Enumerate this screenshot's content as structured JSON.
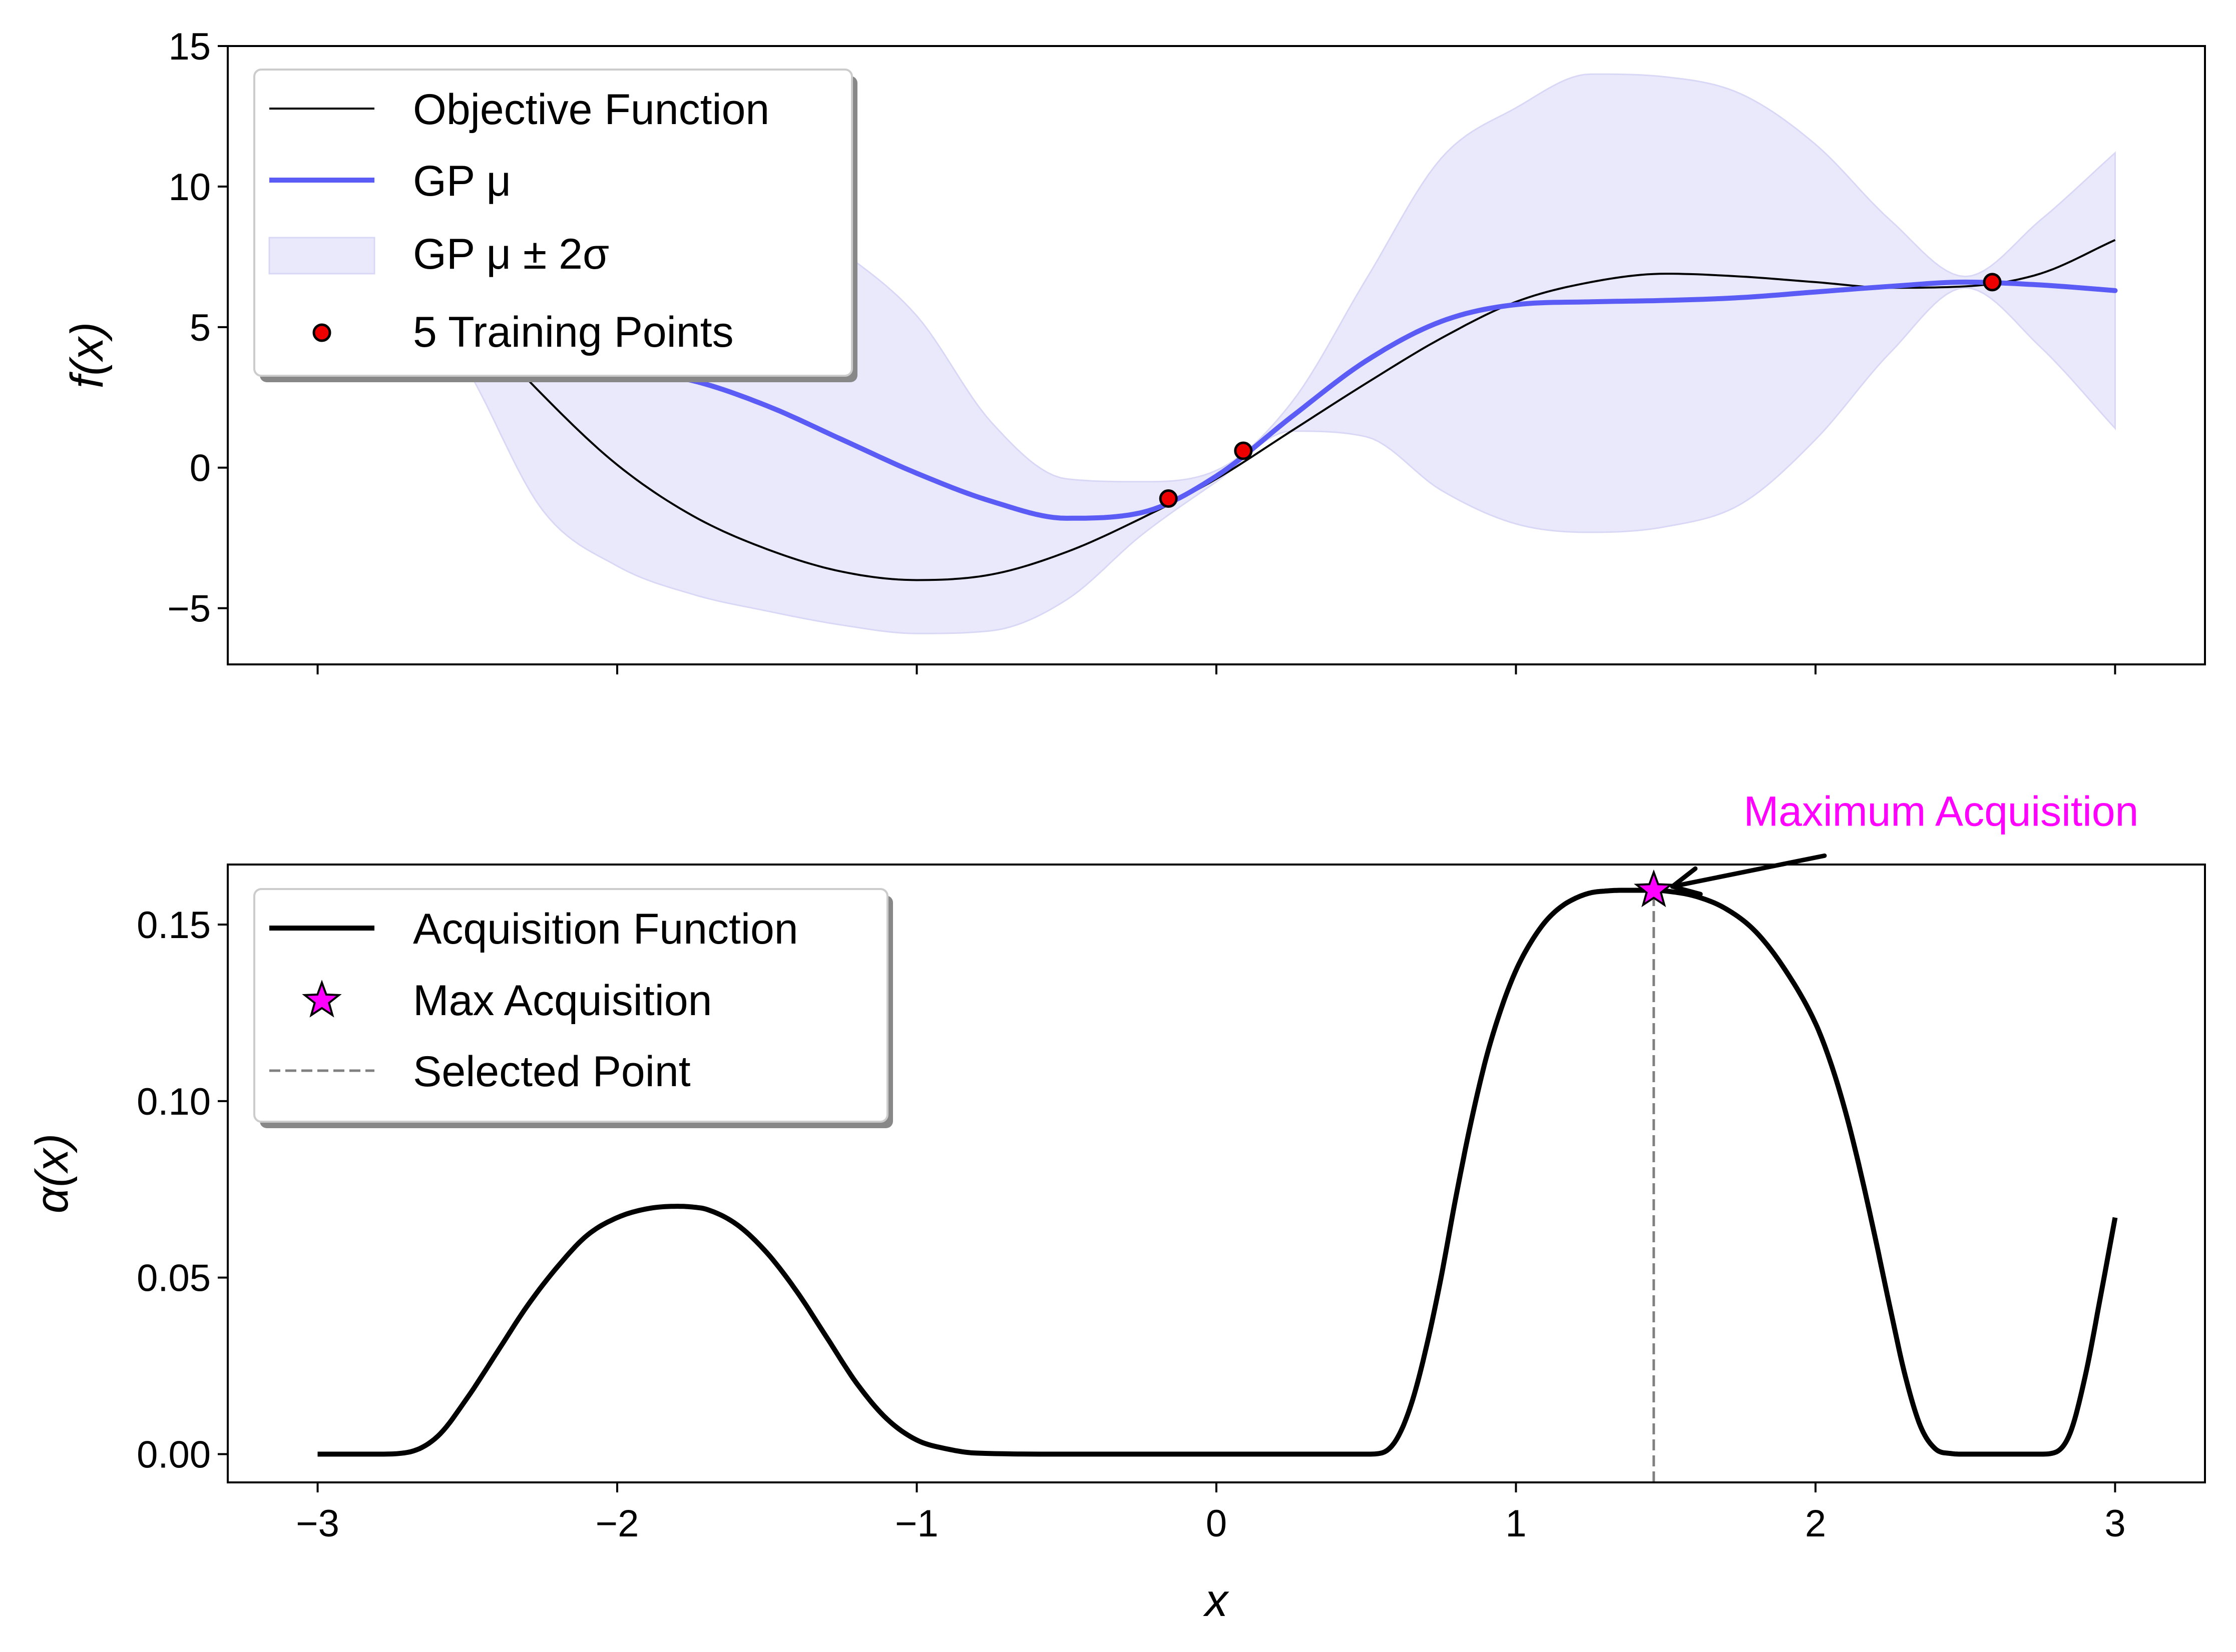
{
  "chart_data": [
    {
      "type": "line",
      "ylabel": "f(x)",
      "xlim": [
        -3.3,
        3.3
      ],
      "ylim": [
        -7,
        15
      ],
      "xticks": [
        -3,
        -2,
        -1,
        0,
        1,
        2,
        3
      ],
      "yticks": [
        -5,
        0,
        5,
        10,
        15
      ],
      "ytick_labels": [
        "−5",
        "0",
        "5",
        "10",
        "15"
      ],
      "grid": false,
      "legend_position": "upper-left",
      "legend": {
        "objective": "Objective Function",
        "gp_mean": "GP μ",
        "gp_band": "GP μ ± 2σ",
        "training": "5 Training Points"
      },
      "series": [
        {
          "name": "Objective Function",
          "color": "#000000",
          "x": [
            -3.0,
            -2.75,
            -2.5,
            -2.25,
            -2.0,
            -1.75,
            -1.5,
            -1.25,
            -1.0,
            -0.75,
            -0.5,
            -0.25,
            0.0,
            0.25,
            0.5,
            0.75,
            1.0,
            1.25,
            1.5,
            1.75,
            2.0,
            2.25,
            2.5,
            2.75,
            3.0
          ],
          "y": [
            11.5,
            9.0,
            5.5,
            2.6,
            0.1,
            -1.7,
            -2.9,
            -3.7,
            -4.0,
            -3.8,
            -3.0,
            -1.8,
            -0.4,
            1.3,
            3.0,
            4.6,
            5.9,
            6.6,
            6.9,
            6.8,
            6.6,
            6.4,
            6.45,
            6.9,
            8.1
          ]
        },
        {
          "name": "GP μ",
          "color": "#5b5bf5",
          "x": [
            -3.0,
            -2.75,
            -2.5,
            -2.25,
            -2.0,
            -1.75,
            -1.5,
            -1.25,
            -1.0,
            -0.75,
            -0.5,
            -0.25,
            0.0,
            0.25,
            0.5,
            0.75,
            1.0,
            1.25,
            1.5,
            1.75,
            2.0,
            2.25,
            2.5,
            2.75,
            3.0
          ],
          "y": [
            11.5,
            8.5,
            5.5,
            4.0,
            3.5,
            3.1,
            2.2,
            1.0,
            -0.2,
            -1.2,
            -1.8,
            -1.6,
            -0.3,
            1.8,
            3.8,
            5.2,
            5.8,
            5.9,
            5.95,
            6.05,
            6.25,
            6.45,
            6.6,
            6.5,
            6.3
          ]
        }
      ],
      "band": {
        "name": "GP μ ± 2σ",
        "color": "#e9e9fb",
        "edge_color": "#d8d8f6",
        "x": [
          -3.0,
          -2.75,
          -2.5,
          -2.25,
          -2.0,
          -1.75,
          -1.5,
          -1.25,
          -1.0,
          -0.75,
          -0.5,
          -0.25,
          0.0,
          0.25,
          0.5,
          0.75,
          1.0,
          1.25,
          1.5,
          1.75,
          2.0,
          2.25,
          2.5,
          2.75,
          3.0
        ],
        "lower": [
          11.5,
          7.4,
          3.5,
          -1.5,
          -3.5,
          -4.5,
          -5.1,
          -5.6,
          -5.9,
          -5.8,
          -4.7,
          -2.4,
          -0.5,
          1.3,
          1.1,
          -0.8,
          -2.0,
          -2.3,
          -2.1,
          -1.3,
          1.0,
          4.1,
          6.4,
          4.3,
          1.4
        ],
        "upper": [
          11.5,
          9.6,
          8.5,
          9.7,
          10.6,
          10.8,
          9.6,
          7.7,
          5.4,
          1.6,
          -0.4,
          -0.5,
          -0.1,
          2.3,
          6.7,
          11.0,
          12.8,
          14.0,
          13.9,
          13.3,
          11.5,
          8.8,
          6.8,
          8.8,
          11.2
        ]
      },
      "training_points": {
        "name": "5 Training Points",
        "color": "#ee0000",
        "x": [
          -3.0,
          -2.5,
          -0.16,
          0.09,
          2.59
        ],
        "y": [
          11.5,
          5.5,
          -1.1,
          0.6,
          6.6
        ]
      }
    },
    {
      "type": "line",
      "xlabel": "x",
      "ylabel": "α(x)",
      "xlim": [
        -3.3,
        3.3
      ],
      "ylim": [
        -0.008,
        0.167
      ],
      "xticks": [
        -3,
        -2,
        -1,
        0,
        1,
        2,
        3
      ],
      "xtick_labels": [
        "−3",
        "−2",
        "−1",
        "0",
        "1",
        "2",
        "3"
      ],
      "yticks": [
        0.0,
        0.05,
        0.1,
        0.15
      ],
      "ytick_labels": [
        "0.00",
        "0.05",
        "0.10",
        "0.15"
      ],
      "grid": false,
      "legend_position": "upper-left",
      "legend": {
        "acq": "Acquisition Function",
        "max": "Max Acquisition",
        "selected": "Selected Point"
      },
      "series": [
        {
          "name": "Acquisition Function",
          "color": "#000000",
          "x": [
            -3.0,
            -2.8,
            -2.7,
            -2.6,
            -2.5,
            -2.4,
            -2.3,
            -2.2,
            -2.1,
            -2.0,
            -1.9,
            -1.8,
            -1.75,
            -1.7,
            -1.6,
            -1.5,
            -1.4,
            -1.3,
            -1.2,
            -1.1,
            -1.0,
            -0.9,
            -0.8,
            -0.5,
            0.0,
            0.5,
            0.55,
            0.6,
            0.65,
            0.7,
            0.75,
            0.8,
            0.85,
            0.9,
            0.95,
            1.0,
            1.05,
            1.1,
            1.15,
            1.2,
            1.25,
            1.3,
            1.35,
            1.4,
            1.46,
            1.5,
            1.6,
            1.7,
            1.8,
            1.9,
            2.0,
            2.05,
            2.1,
            2.15,
            2.2,
            2.25,
            2.3,
            2.35,
            2.4,
            2.45,
            2.5,
            2.6,
            2.7,
            2.75,
            2.8,
            2.85,
            2.9,
            2.95,
            3.0
          ],
          "y": [
            0.0,
            0.0,
            0.0005,
            0.005,
            0.016,
            0.029,
            0.042,
            0.053,
            0.062,
            0.067,
            0.0695,
            0.0702,
            0.07,
            0.0693,
            0.065,
            0.057,
            0.046,
            0.033,
            0.02,
            0.01,
            0.004,
            0.0015,
            0.0003,
            0.0,
            0.0,
            0.0,
            0.0003,
            0.004,
            0.014,
            0.03,
            0.05,
            0.073,
            0.094,
            0.112,
            0.126,
            0.137,
            0.145,
            0.151,
            0.155,
            0.1575,
            0.159,
            0.1595,
            0.1597,
            0.1597,
            0.1597,
            0.1595,
            0.158,
            0.1545,
            0.148,
            0.137,
            0.122,
            0.111,
            0.097,
            0.08,
            0.061,
            0.041,
            0.022,
            0.008,
            0.0015,
            0.0002,
            0.0,
            0.0,
            0.0,
            0.0,
            0.0005,
            0.006,
            0.022,
            0.044,
            0.067
          ]
        }
      ],
      "max_point": {
        "name": "Max Acquisition",
        "color": "#ff00ff",
        "x": 1.46,
        "y": 0.1597
      },
      "selected_point": {
        "name": "Selected Point",
        "color": "#808080",
        "x": 1.46
      },
      "annotation": {
        "text": "Maximum Acquisition",
        "color": "#ff00ff",
        "text_x": 1.76,
        "text_y": 0.178,
        "arrow_from_x": 2.03,
        "arrow_from_y": 0.1695
      }
    }
  ]
}
